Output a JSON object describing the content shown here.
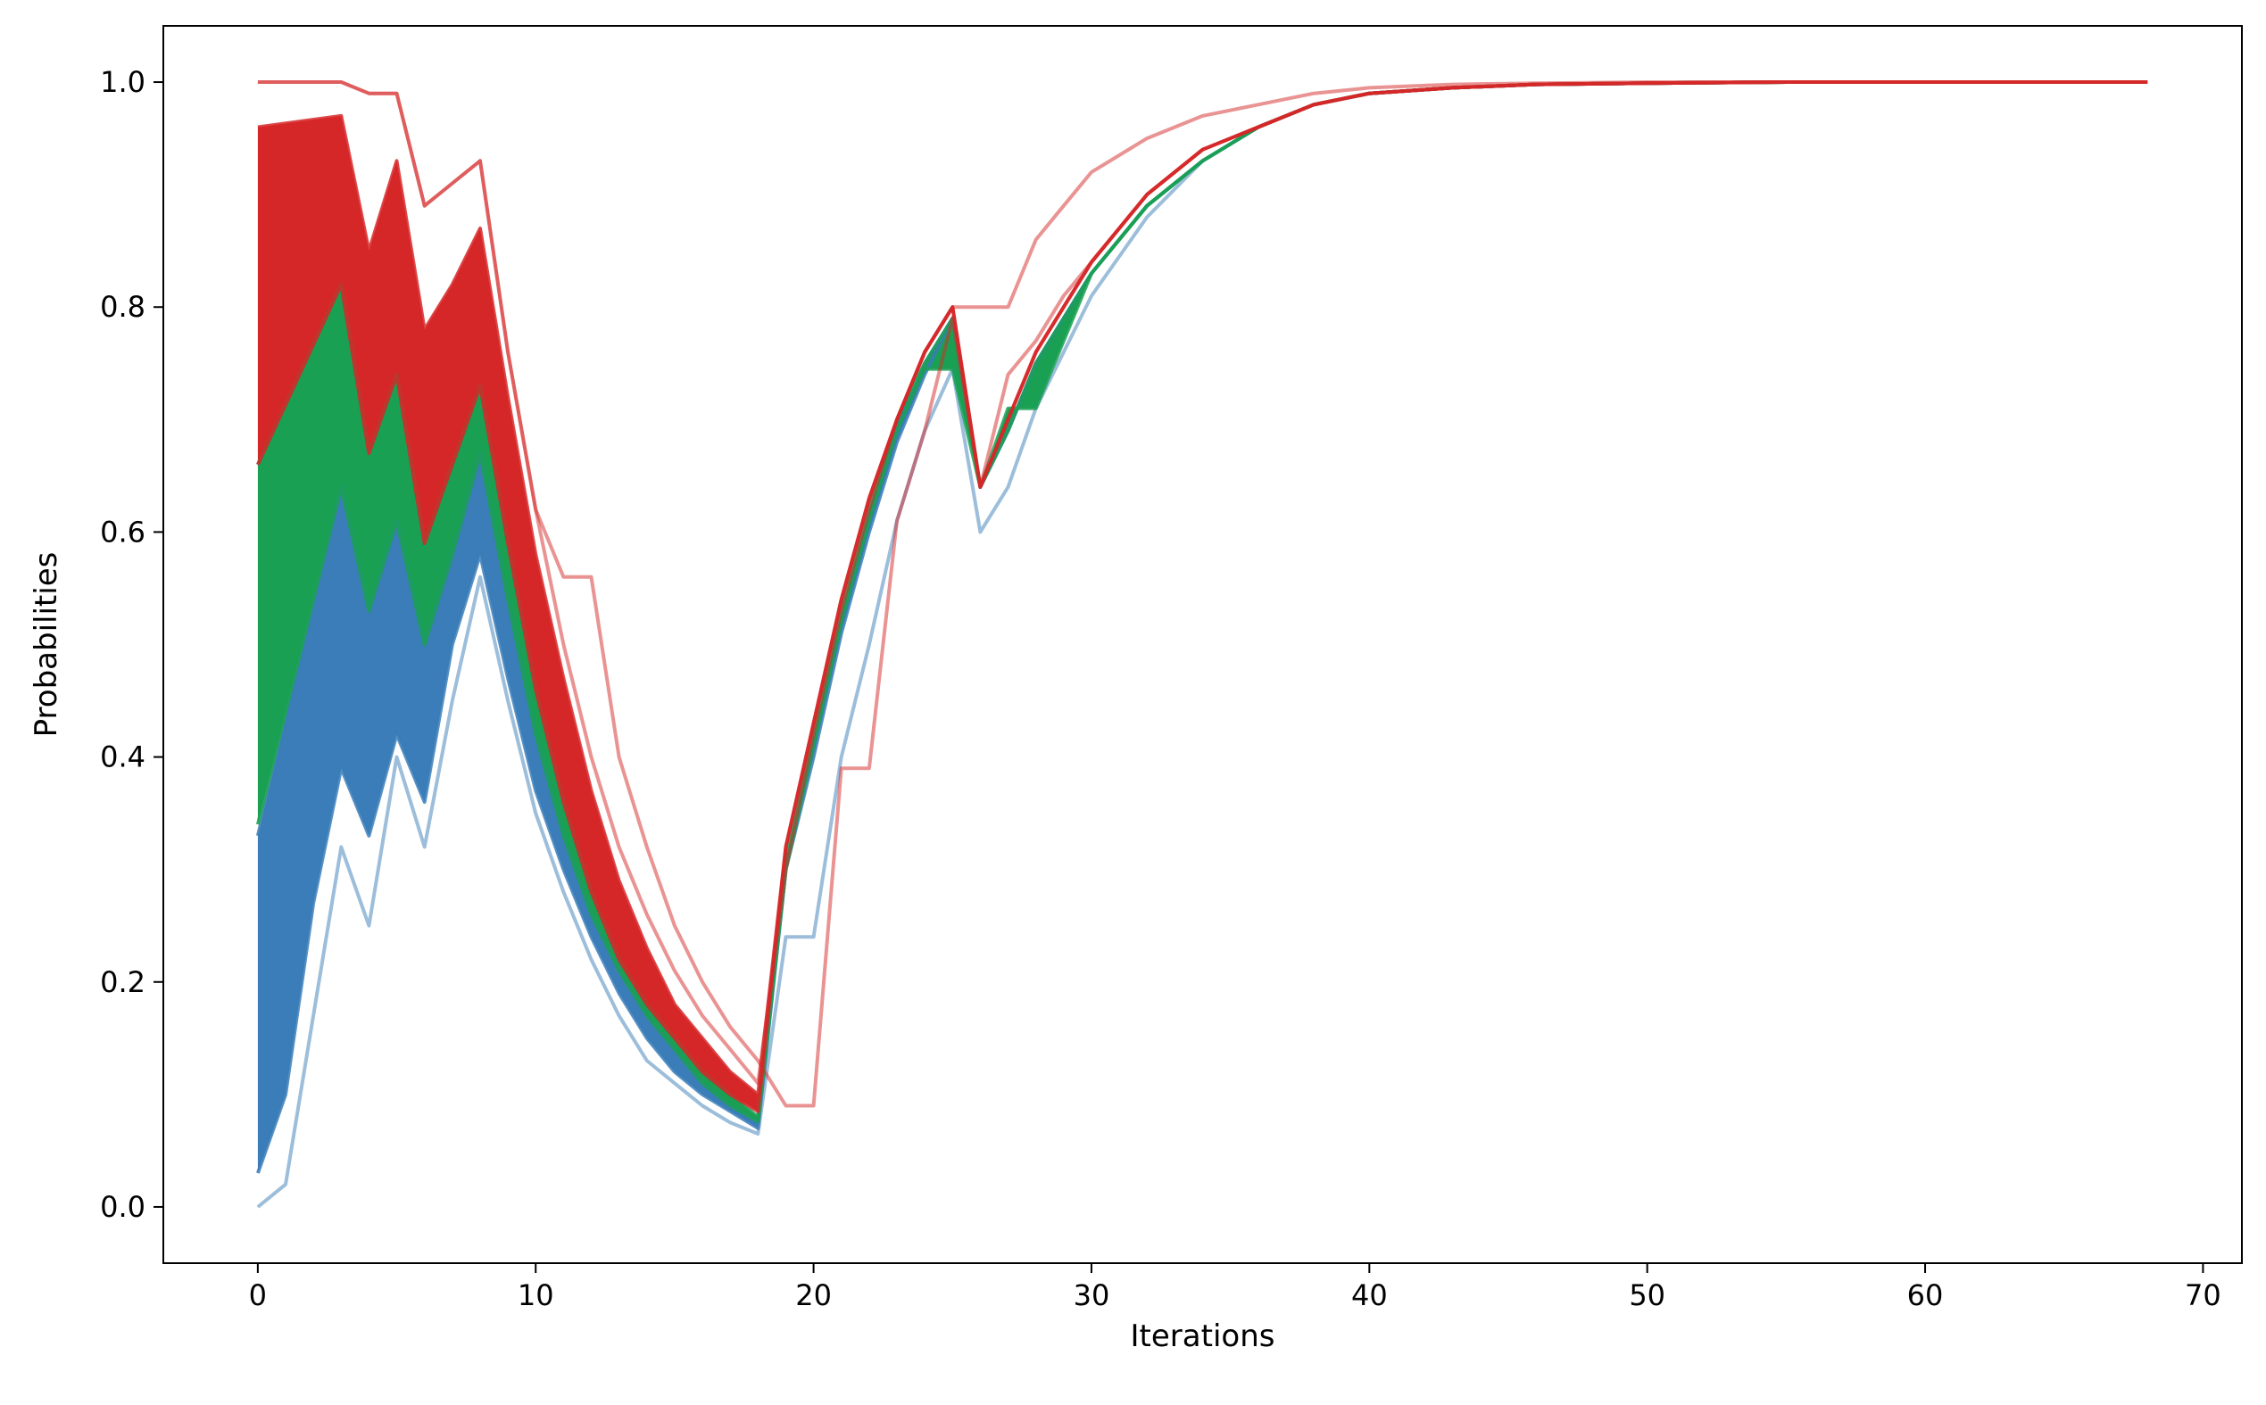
{
  "chart_data": {
    "type": "line",
    "title": "",
    "xlabel": "Iterations",
    "ylabel": "Probabilities",
    "xlim": [
      -3.4,
      71.4
    ],
    "ylim": [
      -0.05,
      1.05
    ],
    "xticks": [
      0,
      10,
      20,
      30,
      40,
      50,
      60,
      70
    ],
    "yticks": [
      0.0,
      0.2,
      0.4,
      0.6,
      0.8,
      1.0
    ],
    "xtick_labels": [
      "0",
      "10",
      "20",
      "30",
      "40",
      "50",
      "60",
      "70"
    ],
    "ytick_labels": [
      "0.0",
      "0.2",
      "0.4",
      "0.6",
      "0.8",
      "1.0"
    ],
    "grid": false,
    "legend": "none",
    "colors": {
      "blue": "#3a7db8",
      "green": "#1aa053",
      "red": "#d62728"
    },
    "series": [
      {
        "color": "blue",
        "x": [
          0,
          1,
          2,
          3,
          4,
          5,
          6,
          7,
          8,
          9,
          10,
          11,
          12,
          13,
          14,
          15,
          16,
          17,
          18,
          19,
          20,
          21,
          22,
          23,
          24,
          25,
          26,
          27,
          28,
          29,
          30,
          32,
          34,
          36,
          38,
          40,
          43,
          46,
          50,
          55,
          60,
          68
        ],
        "y": [
          0.0,
          0.02,
          0.17,
          0.32,
          0.25,
          0.4,
          0.32,
          0.45,
          0.56,
          0.45,
          0.35,
          0.28,
          0.22,
          0.17,
          0.13,
          0.11,
          0.09,
          0.075,
          0.065,
          0.24,
          0.24,
          0.4,
          0.5,
          0.61,
          0.69,
          0.745,
          0.6,
          0.64,
          0.71,
          0.76,
          0.81,
          0.88,
          0.93,
          0.96,
          0.98,
          0.99,
          0.995,
          0.998,
          0.999,
          1.0,
          1.0,
          1.0
        ]
      },
      {
        "color": "blue",
        "x": [
          0,
          1,
          2,
          3,
          4,
          5,
          6,
          7,
          8,
          9,
          10,
          11,
          12,
          13,
          14,
          15,
          16,
          17,
          18,
          19,
          20,
          21,
          22,
          23,
          24,
          25,
          26,
          27,
          28,
          29,
          30,
          32,
          34,
          36,
          38,
          40,
          43,
          46,
          50,
          55,
          60,
          68
        ],
        "y": [
          0.03,
          0.1,
          0.27,
          0.39,
          0.33,
          0.42,
          0.36,
          0.5,
          0.58,
          0.47,
          0.37,
          0.3,
          0.24,
          0.19,
          0.15,
          0.12,
          0.1,
          0.085,
          0.07,
          0.3,
          0.4,
          0.51,
          0.6,
          0.68,
          0.74,
          0.79,
          0.64,
          0.69,
          0.75,
          0.79,
          0.83,
          0.89,
          0.93,
          0.96,
          0.98,
          0.99,
          0.995,
          0.998,
          0.999,
          1.0,
          1.0,
          1.0
        ]
      },
      {
        "color": "blue",
        "x": [
          0,
          3,
          4,
          5,
          6,
          7,
          8,
          9,
          10,
          11,
          12,
          13,
          14,
          15,
          16,
          17,
          18,
          19,
          20,
          21,
          22,
          23,
          24,
          25,
          26,
          27,
          28,
          29,
          30,
          32,
          34,
          36,
          38,
          40,
          43,
          46,
          50,
          55,
          60,
          68
        ],
        "y": [
          0.33,
          0.64,
          0.53,
          0.61,
          0.5,
          0.58,
          0.67,
          0.54,
          0.42,
          0.33,
          0.26,
          0.21,
          0.17,
          0.14,
          0.11,
          0.09,
          0.075,
          0.3,
          0.41,
          0.52,
          0.61,
          0.69,
          0.75,
          0.79,
          0.64,
          0.69,
          0.75,
          0.79,
          0.83,
          0.89,
          0.93,
          0.96,
          0.98,
          0.99,
          0.995,
          0.998,
          0.999,
          1.0,
          1.0,
          1.0
        ]
      },
      {
        "color": "green",
        "x": [
          0,
          3,
          4,
          5,
          6,
          7,
          8,
          9,
          10,
          11,
          12,
          13,
          14,
          15,
          16,
          17,
          18,
          19,
          20,
          21,
          22,
          23,
          24,
          25,
          26,
          27,
          28,
          29,
          30,
          32,
          34,
          36,
          38,
          40,
          43,
          46,
          50,
          55,
          60,
          68
        ],
        "y": [
          0.34,
          0.64,
          0.53,
          0.61,
          0.5,
          0.58,
          0.67,
          0.54,
          0.42,
          0.33,
          0.26,
          0.21,
          0.17,
          0.14,
          0.11,
          0.09,
          0.076,
          0.3,
          0.41,
          0.52,
          0.61,
          0.69,
          0.745,
          0.745,
          0.64,
          0.71,
          0.71,
          0.77,
          0.83,
          0.89,
          0.93,
          0.96,
          0.98,
          0.99,
          0.995,
          0.998,
          0.999,
          1.0,
          1.0,
          1.0
        ]
      },
      {
        "color": "green",
        "x": [
          0,
          3,
          4,
          5,
          6,
          7,
          8,
          9,
          10,
          11,
          12,
          13,
          14,
          15,
          16,
          17,
          18,
          19,
          20,
          21,
          22,
          23,
          24,
          25,
          26,
          27,
          28,
          29,
          30,
          32,
          34,
          36,
          38,
          40,
          43,
          46,
          50,
          55,
          60,
          68
        ],
        "y": [
          0.66,
          0.82,
          0.67,
          0.74,
          0.59,
          0.66,
          0.73,
          0.59,
          0.46,
          0.36,
          0.28,
          0.22,
          0.18,
          0.15,
          0.12,
          0.1,
          0.08,
          0.31,
          0.42,
          0.53,
          0.62,
          0.7,
          0.75,
          0.79,
          0.64,
          0.69,
          0.75,
          0.79,
          0.83,
          0.89,
          0.93,
          0.96,
          0.98,
          0.99,
          0.995,
          0.998,
          0.999,
          1.0,
          1.0,
          1.0
        ]
      },
      {
        "color": "red",
        "x": [
          0,
          3,
          4,
          5,
          6,
          7,
          8,
          9,
          10,
          11,
          12,
          13,
          14,
          15,
          16,
          17,
          18,
          19,
          20,
          21,
          22,
          23,
          24,
          25,
          26,
          27,
          28,
          29,
          30,
          32,
          34,
          36,
          38,
          40,
          43,
          46,
          50,
          55,
          60,
          68
        ],
        "y": [
          0.66,
          0.82,
          0.67,
          0.74,
          0.59,
          0.66,
          0.73,
          0.59,
          0.46,
          0.36,
          0.28,
          0.22,
          0.18,
          0.15,
          0.12,
          0.1,
          0.085,
          0.32,
          0.43,
          0.54,
          0.63,
          0.7,
          0.76,
          0.8,
          0.64,
          0.7,
          0.76,
          0.8,
          0.84,
          0.9,
          0.94,
          0.96,
          0.98,
          0.99,
          0.995,
          0.998,
          0.999,
          1.0,
          1.0,
          1.0
        ]
      },
      {
        "color": "red",
        "x": [
          0,
          3,
          4,
          5,
          6,
          7,
          8,
          9,
          10,
          11,
          12,
          13,
          14,
          15,
          16,
          17,
          18,
          19,
          20,
          21,
          22,
          23,
          24,
          25,
          26,
          27,
          28,
          29,
          30,
          32,
          34,
          36,
          38,
          40,
          43,
          46,
          50,
          55,
          60,
          68
        ],
        "y": [
          0.96,
          0.97,
          0.85,
          0.93,
          0.78,
          0.82,
          0.87,
          0.72,
          0.58,
          0.47,
          0.37,
          0.29,
          0.23,
          0.18,
          0.15,
          0.12,
          0.1,
          0.32,
          0.43,
          0.54,
          0.63,
          0.7,
          0.76,
          0.8,
          0.64,
          0.7,
          0.76,
          0.8,
          0.84,
          0.9,
          0.94,
          0.96,
          0.98,
          0.99,
          0.995,
          0.998,
          0.999,
          1.0,
          1.0,
          1.0
        ]
      },
      {
        "color": "red",
        "x": [
          0,
          3,
          4,
          5,
          6,
          7,
          8,
          9,
          10,
          11,
          12,
          13,
          14,
          15,
          16,
          17,
          18,
          19,
          20,
          21,
          22,
          23,
          24,
          25,
          26,
          27,
          28,
          29,
          30,
          32,
          34,
          36,
          38,
          40,
          43,
          46,
          50,
          55,
          60,
          68
        ],
        "y": [
          1.0,
          1.0,
          0.99,
          0.99,
          0.89,
          0.91,
          0.93,
          0.76,
          0.62,
          0.56,
          0.56,
          0.4,
          0.32,
          0.25,
          0.2,
          0.16,
          0.13,
          0.09,
          0.09,
          0.39,
          0.39,
          0.61,
          0.69,
          0.79,
          0.64,
          0.74,
          0.77,
          0.81,
          0.84,
          0.9,
          0.94,
          0.96,
          0.98,
          0.99,
          0.995,
          0.998,
          0.999,
          1.0,
          1.0,
          1.0
        ]
      },
      {
        "color": "red",
        "x": [
          0,
          3,
          4,
          5,
          6,
          7,
          8,
          9,
          10,
          11,
          12,
          13,
          14,
          15,
          16,
          17,
          18,
          19,
          20,
          21,
          22,
          23,
          24,
          25,
          26,
          27,
          28,
          29,
          30,
          32,
          34,
          36,
          38,
          40,
          43,
          46,
          50,
          55,
          60,
          68
        ],
        "y": [
          1.0,
          1.0,
          0.99,
          0.99,
          0.89,
          0.91,
          0.93,
          0.76,
          0.62,
          0.5,
          0.4,
          0.32,
          0.26,
          0.21,
          0.17,
          0.14,
          0.11,
          0.3,
          0.42,
          0.53,
          0.62,
          0.7,
          0.76,
          0.8,
          0.8,
          0.8,
          0.86,
          0.89,
          0.92,
          0.95,
          0.97,
          0.98,
          0.99,
          0.995,
          0.998,
          0.999,
          1.0,
          1.0,
          1.0,
          1.0
        ]
      }
    ]
  }
}
